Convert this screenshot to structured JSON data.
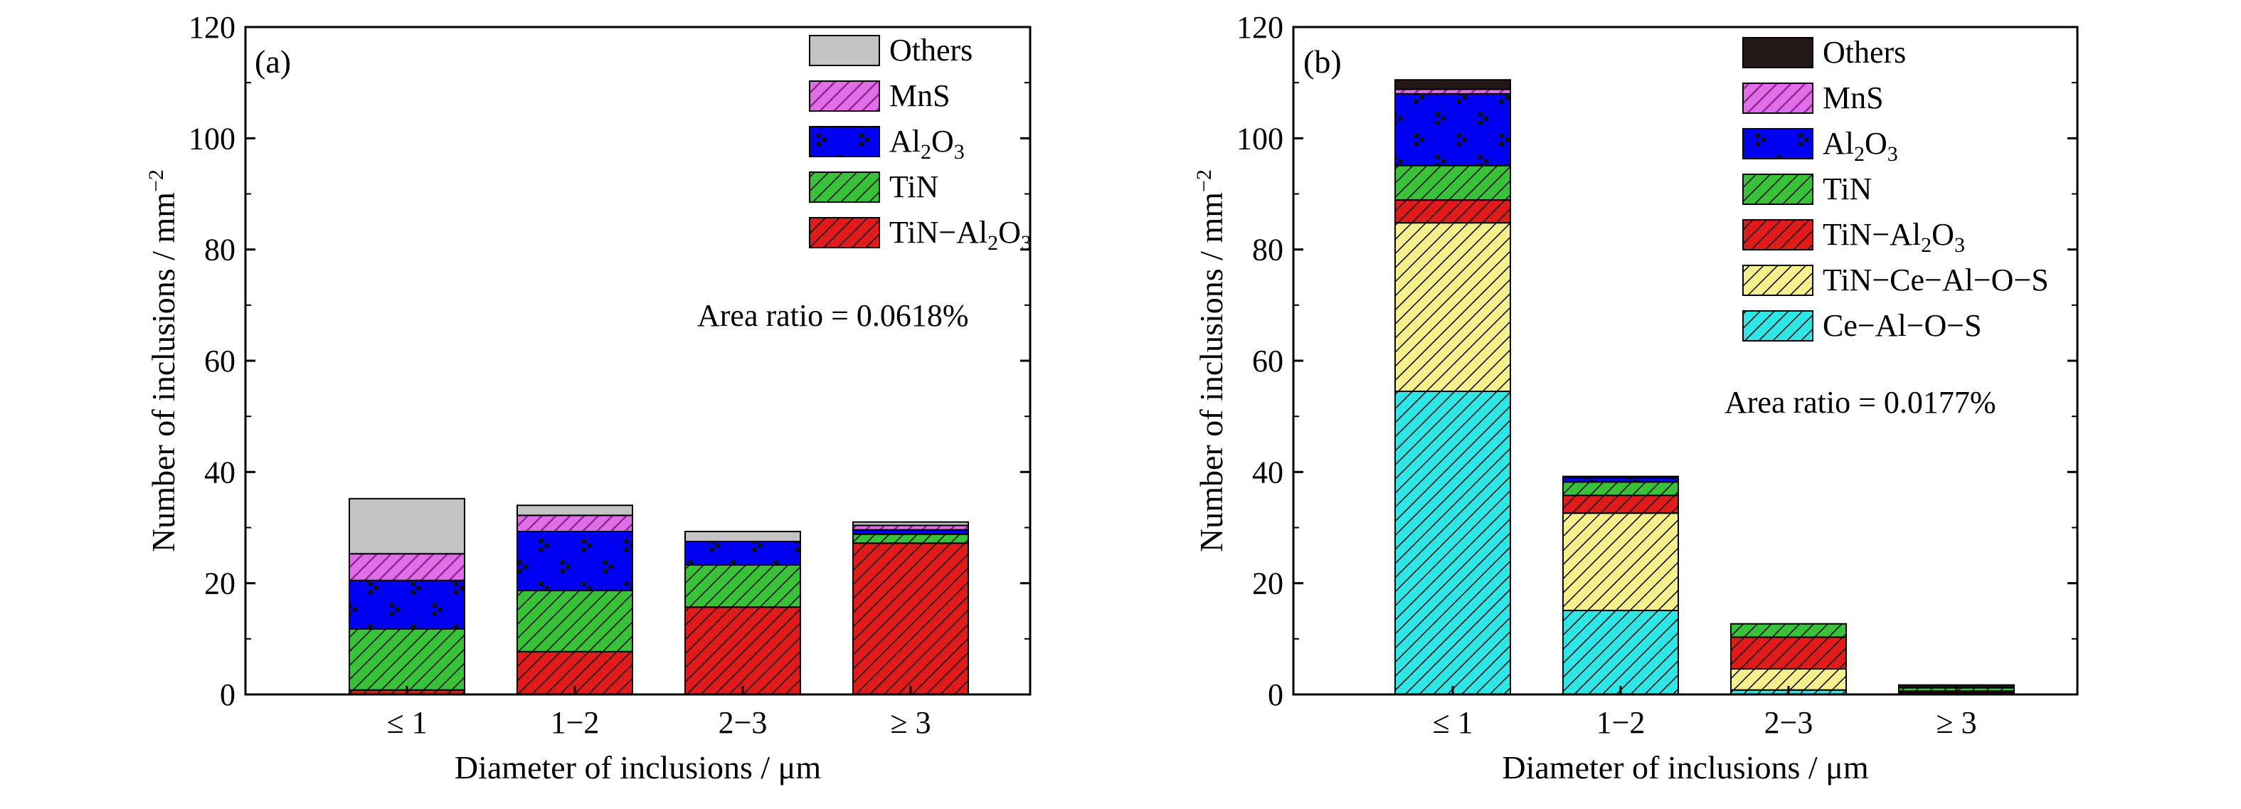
{
  "chart_data": [
    {
      "type": "bar",
      "stacked": true,
      "panel_label": "(a)",
      "categories": [
        "≤ 1",
        "1−2",
        "2−3",
        "≥ 3"
      ],
      "xlabel": "Diameter of inclusions / μm",
      "ylabel": "Number of inclusions / mm",
      "ylabel_sup": "−2",
      "ylim": [
        0,
        120
      ],
      "yticks": [
        0,
        20,
        40,
        60,
        80,
        100,
        120
      ],
      "annotation": "Area ratio = 0.0618%",
      "legend_position": "top-right",
      "series": [
        {
          "name": "TiN−Al",
          "sub1": "2",
          "mid": "O",
          "sub2": "3",
          "color": "#e11a1a",
          "pattern": "hatch-dark",
          "values": [
            0.8,
            7.7,
            15.7,
            27.2
          ]
        },
        {
          "name": "TiN",
          "color": "#38c238",
          "pattern": "hatch-dark",
          "values": [
            11.0,
            11.0,
            7.6,
            1.6
          ]
        },
        {
          "name": "Al",
          "sub1": "2",
          "mid": "O",
          "sub2": "3",
          "color": "#0000f2",
          "pattern": "dots",
          "values": [
            8.7,
            10.6,
            4.2,
            0.8
          ]
        },
        {
          "name": "MnS",
          "color": "#e16ee8",
          "pattern": "hatch-light",
          "values": [
            4.8,
            2.9,
            0.0,
            0.8
          ]
        },
        {
          "name": "Others",
          "color": "#c4c4c4",
          "pattern": "none",
          "values": [
            9.9,
            1.8,
            1.8,
            0.6
          ]
        }
      ]
    },
    {
      "type": "bar",
      "stacked": true,
      "panel_label": "(b)",
      "categories": [
        "≤ 1",
        "1−2",
        "2−3",
        "≥ 3"
      ],
      "xlabel": "Diameter of inclusions / μm",
      "ylabel": "Number of inclusions / mm",
      "ylabel_sup": "−2",
      "ylim": [
        0,
        120
      ],
      "yticks": [
        0,
        20,
        40,
        60,
        80,
        100,
        120
      ],
      "annotation": "Area ratio = 0.0177%",
      "legend_position": "top-right",
      "series": [
        {
          "name": "Ce−Al−O−S",
          "color": "#2ee6e6",
          "pattern": "hatch-dark",
          "values": [
            54.5,
            15.1,
            0.8,
            0.3
          ]
        },
        {
          "name": "TiN−Ce−Al−O−S",
          "color": "#f5f08c",
          "pattern": "hatch-dark",
          "values": [
            30.3,
            17.5,
            3.8,
            0.0
          ]
        },
        {
          "name": "TiN−Al",
          "sub1": "2",
          "mid": "O",
          "sub2": "3",
          "color": "#e11a1a",
          "pattern": "hatch-dark",
          "values": [
            4.1,
            3.2,
            5.7,
            0.3
          ]
        },
        {
          "name": "TiN",
          "color": "#38c238",
          "pattern": "hatch-dark",
          "values": [
            6.2,
            2.4,
            2.4,
            0.6
          ]
        },
        {
          "name": "Al",
          "sub1": "2",
          "mid": "O",
          "sub2": "3",
          "color": "#0000f2",
          "pattern": "dots",
          "values": [
            12.9,
            0.8,
            0.0,
            0.0
          ]
        },
        {
          "name": "MnS",
          "color": "#e16ee8",
          "pattern": "hatch-light",
          "values": [
            0.8,
            0.0,
            0.0,
            0.0
          ]
        },
        {
          "name": "Others",
          "color": "#231815",
          "pattern": "none",
          "values": [
            1.7,
            0.2,
            0.0,
            0.5
          ]
        }
      ]
    }
  ]
}
